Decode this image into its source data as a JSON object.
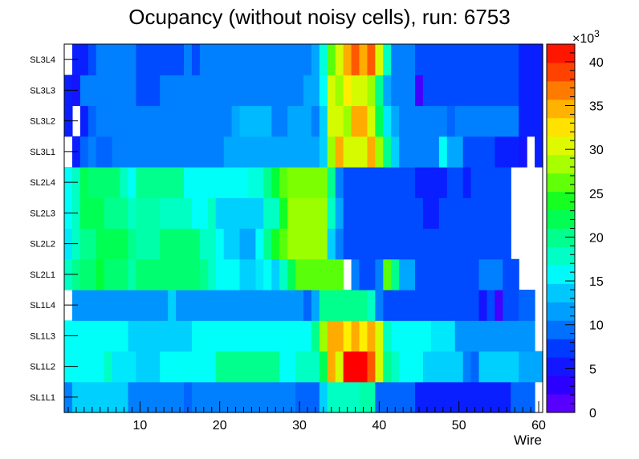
{
  "chart_data": {
    "type": "heatmap",
    "title": "Ocupancy (without noisy cells), run: 6753",
    "xlabel": "Wire",
    "ylabel": "",
    "xlim": [
      0.5,
      60.5
    ],
    "x_ticks": [
      10,
      20,
      30,
      40,
      50,
      60
    ],
    "y_categories": [
      "SL1L1",
      "SL1L2",
      "SL1L3",
      "SL1L4",
      "SL2L1",
      "SL2L2",
      "SL2L3",
      "SL2L4",
      "SL3L1",
      "SL3L2",
      "SL3L3",
      "SL3L4"
    ],
    "z_range": [
      0,
      42
    ],
    "z_unit_label": "×10",
    "z_unit_exponent": "3",
    "z_ticks": [
      "0",
      "5",
      "10",
      "15",
      "20",
      "25",
      "30",
      "35",
      "40"
    ],
    "rows": [
      {
        "name": "SL1L1",
        "cells": [
          [
            1,
            1,
            10
          ],
          [
            2,
            8,
            14
          ],
          [
            9,
            15,
            10
          ],
          [
            16,
            16,
            9
          ],
          [
            17,
            29,
            10
          ],
          [
            30,
            32,
            9
          ],
          [
            33,
            33,
            14
          ],
          [
            34,
            37,
            18
          ],
          [
            38,
            39,
            19
          ],
          [
            40,
            44,
            9
          ],
          [
            45,
            56,
            6
          ],
          [
            57,
            59,
            9
          ],
          [
            60,
            60,
            null
          ]
        ]
      },
      {
        "name": "SL1L2",
        "cells": [
          [
            1,
            5,
            16
          ],
          [
            6,
            6,
            18
          ],
          [
            7,
            9,
            15
          ],
          [
            10,
            12,
            14
          ],
          [
            13,
            19,
            16
          ],
          [
            20,
            27,
            20
          ],
          [
            28,
            29,
            16
          ],
          [
            30,
            32,
            18
          ],
          [
            33,
            33,
            22
          ],
          [
            34,
            34,
            35
          ],
          [
            35,
            35,
            30
          ],
          [
            36,
            38,
            42
          ],
          [
            39,
            39,
            38
          ],
          [
            40,
            40,
            30
          ],
          [
            41,
            41,
            20
          ],
          [
            42,
            42,
            18
          ],
          [
            43,
            45,
            16
          ],
          [
            46,
            50,
            14
          ],
          [
            51,
            51,
            10
          ],
          [
            52,
            52,
            9
          ],
          [
            53,
            57,
            14
          ],
          [
            58,
            60,
            12
          ]
        ]
      },
      {
        "name": "SL1L3",
        "cells": [
          [
            1,
            8,
            16
          ],
          [
            9,
            16,
            14
          ],
          [
            17,
            31,
            16
          ],
          [
            32,
            32,
            20
          ],
          [
            33,
            33,
            28
          ],
          [
            34,
            35,
            35
          ],
          [
            36,
            36,
            32
          ],
          [
            37,
            37,
            35
          ],
          [
            38,
            38,
            32
          ],
          [
            39,
            39,
            35
          ],
          [
            40,
            40,
            30
          ],
          [
            41,
            41,
            18
          ],
          [
            42,
            46,
            16
          ],
          [
            47,
            49,
            15
          ],
          [
            50,
            59,
            11
          ],
          [
            60,
            60,
            null
          ]
        ]
      },
      {
        "name": "SL1L4",
        "cells": [
          [
            1,
            1,
            null
          ],
          [
            2,
            13,
            11
          ],
          [
            14,
            14,
            14
          ],
          [
            15,
            30,
            11
          ],
          [
            31,
            31,
            9
          ],
          [
            32,
            32,
            12
          ],
          [
            33,
            38,
            20
          ],
          [
            39,
            39,
            18
          ],
          [
            40,
            40,
            10
          ],
          [
            41,
            52,
            8
          ],
          [
            53,
            53,
            5
          ],
          [
            54,
            54,
            8
          ],
          [
            55,
            55,
            2
          ],
          [
            56,
            57,
            8
          ],
          [
            58,
            59,
            9
          ],
          [
            60,
            60,
            null
          ]
        ]
      },
      {
        "name": "SL2L1",
        "cells": [
          [
            1,
            1,
            18
          ],
          [
            2,
            2,
            20
          ],
          [
            3,
            4,
            21
          ],
          [
            5,
            5,
            23
          ],
          [
            6,
            8,
            21
          ],
          [
            9,
            9,
            19
          ],
          [
            10,
            17,
            21
          ],
          [
            18,
            18,
            20
          ],
          [
            19,
            19,
            18
          ],
          [
            20,
            22,
            16
          ],
          [
            23,
            24,
            14
          ],
          [
            25,
            25,
            15
          ],
          [
            26,
            26,
            16
          ],
          [
            27,
            27,
            14
          ],
          [
            28,
            28,
            18
          ],
          [
            29,
            29,
            22
          ],
          [
            30,
            35,
            26
          ],
          [
            36,
            36,
            null
          ],
          [
            37,
            37,
            10
          ],
          [
            38,
            39,
            8
          ],
          [
            40,
            40,
            10
          ],
          [
            41,
            41,
            26
          ],
          [
            42,
            42,
            20
          ],
          [
            43,
            44,
            12
          ],
          [
            45,
            52,
            8
          ],
          [
            53,
            55,
            10
          ],
          [
            56,
            57,
            8
          ],
          [
            58,
            60,
            null
          ]
        ]
      },
      {
        "name": "SL2L2",
        "cells": [
          [
            1,
            1,
            15
          ],
          [
            2,
            2,
            18
          ],
          [
            3,
            4,
            20
          ],
          [
            5,
            5,
            22
          ],
          [
            6,
            8,
            22
          ],
          [
            9,
            9,
            20
          ],
          [
            10,
            12,
            19
          ],
          [
            13,
            17,
            21
          ],
          [
            18,
            19,
            18
          ],
          [
            20,
            20,
            16
          ],
          [
            21,
            22,
            14
          ],
          [
            23,
            24,
            12
          ],
          [
            25,
            25,
            16
          ],
          [
            26,
            26,
            20
          ],
          [
            27,
            27,
            24
          ],
          [
            28,
            28,
            26
          ],
          [
            29,
            33,
            28
          ],
          [
            34,
            34,
            14
          ],
          [
            35,
            35,
            10
          ],
          [
            36,
            56,
            8
          ],
          [
            57,
            60,
            null
          ]
        ]
      },
      {
        "name": "SL2L3",
        "cells": [
          [
            1,
            1,
            16
          ],
          [
            2,
            2,
            18
          ],
          [
            3,
            5,
            22
          ],
          [
            6,
            8,
            20
          ],
          [
            9,
            9,
            18
          ],
          [
            10,
            12,
            19
          ],
          [
            13,
            16,
            18
          ],
          [
            17,
            18,
            16
          ],
          [
            19,
            19,
            18
          ],
          [
            20,
            25,
            14
          ],
          [
            26,
            27,
            18
          ],
          [
            28,
            28,
            24
          ],
          [
            29,
            33,
            28
          ],
          [
            34,
            34,
            18
          ],
          [
            35,
            35,
            12
          ],
          [
            36,
            45,
            8
          ],
          [
            46,
            47,
            6
          ],
          [
            48,
            56,
            8
          ],
          [
            57,
            60,
            null
          ]
        ]
      },
      {
        "name": "SL2L4",
        "cells": [
          [
            1,
            1,
            16
          ],
          [
            2,
            2,
            18
          ],
          [
            3,
            3,
            22
          ],
          [
            4,
            7,
            21
          ],
          [
            8,
            8,
            18
          ],
          [
            9,
            9,
            16
          ],
          [
            10,
            15,
            20
          ],
          [
            16,
            23,
            16
          ],
          [
            24,
            25,
            17
          ],
          [
            26,
            26,
            20
          ],
          [
            27,
            27,
            23
          ],
          [
            28,
            28,
            26
          ],
          [
            29,
            33,
            27
          ],
          [
            34,
            34,
            20
          ],
          [
            35,
            35,
            10
          ],
          [
            36,
            44,
            8
          ],
          [
            45,
            48,
            6
          ],
          [
            49,
            50,
            8
          ],
          [
            51,
            51,
            6
          ],
          [
            52,
            56,
            8
          ],
          [
            57,
            60,
            null
          ]
        ]
      },
      {
        "name": "SL3L1",
        "cells": [
          [
            1,
            1,
            null
          ],
          [
            2,
            2,
            6
          ],
          [
            3,
            3,
            9
          ],
          [
            4,
            4,
            10
          ],
          [
            5,
            6,
            9
          ],
          [
            7,
            20,
            10
          ],
          [
            21,
            32,
            12
          ],
          [
            33,
            33,
            14
          ],
          [
            34,
            34,
            28
          ],
          [
            35,
            35,
            35
          ],
          [
            36,
            38,
            30
          ],
          [
            39,
            39,
            35
          ],
          [
            40,
            40,
            28
          ],
          [
            41,
            41,
            20
          ],
          [
            42,
            42,
            14
          ],
          [
            43,
            47,
            10
          ],
          [
            48,
            48,
            16
          ],
          [
            49,
            50,
            12
          ],
          [
            51,
            54,
            8
          ],
          [
            55,
            57,
            6
          ],
          [
            58,
            58,
            5
          ],
          [
            59,
            59,
            null
          ],
          [
            60,
            60,
            6
          ]
        ]
      },
      {
        "name": "SL3L2",
        "cells": [
          [
            1,
            1,
            6
          ],
          [
            2,
            2,
            null
          ],
          [
            3,
            3,
            6
          ],
          [
            4,
            4,
            9
          ],
          [
            5,
            21,
            10
          ],
          [
            22,
            22,
            12
          ],
          [
            23,
            26,
            13
          ],
          [
            27,
            28,
            10
          ],
          [
            29,
            31,
            12
          ],
          [
            32,
            32,
            10
          ],
          [
            33,
            33,
            14
          ],
          [
            34,
            35,
            30
          ],
          [
            36,
            36,
            28
          ],
          [
            37,
            38,
            35
          ],
          [
            39,
            39,
            30
          ],
          [
            40,
            40,
            22
          ],
          [
            41,
            41,
            15
          ],
          [
            42,
            42,
            12
          ],
          [
            43,
            48,
            10
          ],
          [
            49,
            49,
            9
          ],
          [
            50,
            57,
            10
          ],
          [
            58,
            60,
            6
          ]
        ]
      },
      {
        "name": "SL3L3",
        "cells": [
          [
            1,
            1,
            6
          ],
          [
            2,
            2,
            5
          ],
          [
            3,
            9,
            10
          ],
          [
            10,
            12,
            8
          ],
          [
            13,
            30,
            10
          ],
          [
            31,
            32,
            12
          ],
          [
            33,
            33,
            16
          ],
          [
            34,
            34,
            30
          ],
          [
            35,
            35,
            28
          ],
          [
            36,
            36,
            32
          ],
          [
            37,
            38,
            30
          ],
          [
            39,
            39,
            28
          ],
          [
            40,
            40,
            20
          ],
          [
            41,
            41,
            12
          ],
          [
            42,
            44,
            10
          ],
          [
            45,
            45,
            2
          ],
          [
            46,
            57,
            8
          ],
          [
            58,
            60,
            6
          ]
        ]
      },
      {
        "name": "SL3L4",
        "cells": [
          [
            1,
            1,
            null
          ],
          [
            2,
            3,
            6
          ],
          [
            4,
            4,
            8
          ],
          [
            5,
            9,
            10
          ],
          [
            10,
            15,
            8
          ],
          [
            16,
            16,
            10
          ],
          [
            17,
            17,
            8
          ],
          [
            18,
            31,
            10
          ],
          [
            32,
            32,
            12
          ],
          [
            33,
            33,
            17
          ],
          [
            34,
            34,
            26
          ],
          [
            35,
            35,
            30
          ],
          [
            36,
            36,
            35
          ],
          [
            37,
            37,
            38
          ],
          [
            38,
            38,
            35
          ],
          [
            39,
            39,
            38
          ],
          [
            40,
            40,
            30
          ],
          [
            41,
            41,
            18
          ],
          [
            42,
            44,
            10
          ],
          [
            45,
            57,
            8
          ],
          [
            58,
            60,
            6
          ]
        ]
      }
    ]
  }
}
